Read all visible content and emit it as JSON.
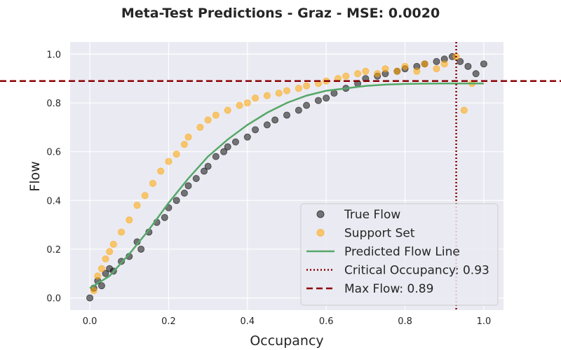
{
  "chart_data": {
    "type": "scatter",
    "title": "Meta-Test Predictions - Graz - MSE: 0.0020",
    "xlabel": "Occupancy",
    "ylabel": "Flow",
    "xlim": [
      -0.05,
      1.05
    ],
    "ylim": [
      -0.05,
      1.05
    ],
    "x_ticks": [
      "0.0",
      "0.2",
      "0.4",
      "0.6",
      "0.8",
      "1.0"
    ],
    "y_ticks": [
      "0.0",
      "0.2",
      "0.4",
      "0.6",
      "0.8",
      "1.0"
    ],
    "grid": true,
    "legend_position": "lower-right",
    "background_color": "#eaeaf2",
    "series": [
      {
        "name": "True Flow",
        "kind": "scatter",
        "color": "#222222",
        "points": [
          [
            0.0,
            0.0
          ],
          [
            0.01,
            0.04
          ],
          [
            0.02,
            0.07
          ],
          [
            0.03,
            0.05
          ],
          [
            0.04,
            0.1
          ],
          [
            0.05,
            0.12
          ],
          [
            0.06,
            0.11
          ],
          [
            0.08,
            0.15
          ],
          [
            0.1,
            0.17
          ],
          [
            0.12,
            0.23
          ],
          [
            0.13,
            0.2
          ],
          [
            0.15,
            0.27
          ],
          [
            0.17,
            0.31
          ],
          [
            0.19,
            0.33
          ],
          [
            0.2,
            0.37
          ],
          [
            0.22,
            0.4
          ],
          [
            0.24,
            0.43
          ],
          [
            0.25,
            0.46
          ],
          [
            0.27,
            0.49
          ],
          [
            0.29,
            0.52
          ],
          [
            0.3,
            0.54
          ],
          [
            0.32,
            0.58
          ],
          [
            0.34,
            0.6
          ],
          [
            0.35,
            0.62
          ],
          [
            0.37,
            0.64
          ],
          [
            0.4,
            0.66
          ],
          [
            0.42,
            0.69
          ],
          [
            0.45,
            0.71
          ],
          [
            0.47,
            0.73
          ],
          [
            0.5,
            0.75
          ],
          [
            0.53,
            0.77
          ],
          [
            0.55,
            0.79
          ],
          [
            0.58,
            0.81
          ],
          [
            0.6,
            0.82
          ],
          [
            0.62,
            0.84
          ],
          [
            0.65,
            0.86
          ],
          [
            0.68,
            0.88
          ],
          [
            0.7,
            0.9
          ],
          [
            0.73,
            0.91
          ],
          [
            0.75,
            0.92
          ],
          [
            0.78,
            0.93
          ],
          [
            0.8,
            0.94
          ],
          [
            0.83,
            0.95
          ],
          [
            0.85,
            0.96
          ],
          [
            0.88,
            0.97
          ],
          [
            0.9,
            0.98
          ],
          [
            0.92,
            0.99
          ],
          [
            0.94,
            0.97
          ],
          [
            0.96,
            0.95
          ],
          [
            0.98,
            0.92
          ],
          [
            1.0,
            0.96
          ]
        ]
      },
      {
        "name": "Support Set",
        "kind": "scatter",
        "color": "#ffa500",
        "points": [
          [
            0.01,
            0.03
          ],
          [
            0.02,
            0.09
          ],
          [
            0.03,
            0.12
          ],
          [
            0.04,
            0.16
          ],
          [
            0.05,
            0.19
          ],
          [
            0.06,
            0.22
          ],
          [
            0.08,
            0.27
          ],
          [
            0.1,
            0.32
          ],
          [
            0.12,
            0.38
          ],
          [
            0.14,
            0.42
          ],
          [
            0.16,
            0.47
          ],
          [
            0.18,
            0.52
          ],
          [
            0.2,
            0.56
          ],
          [
            0.22,
            0.59
          ],
          [
            0.24,
            0.63
          ],
          [
            0.25,
            0.66
          ],
          [
            0.28,
            0.7
          ],
          [
            0.3,
            0.73
          ],
          [
            0.32,
            0.75
          ],
          [
            0.35,
            0.77
          ],
          [
            0.38,
            0.79
          ],
          [
            0.4,
            0.8
          ],
          [
            0.42,
            0.82
          ],
          [
            0.45,
            0.83
          ],
          [
            0.48,
            0.84
          ],
          [
            0.5,
            0.85
          ],
          [
            0.53,
            0.86
          ],
          [
            0.55,
            0.87
          ],
          [
            0.58,
            0.88
          ],
          [
            0.6,
            0.89
          ],
          [
            0.63,
            0.9
          ],
          [
            0.65,
            0.91
          ],
          [
            0.68,
            0.92
          ],
          [
            0.7,
            0.93
          ],
          [
            0.73,
            0.92
          ],
          [
            0.75,
            0.94
          ],
          [
            0.78,
            0.93
          ],
          [
            0.8,
            0.95
          ],
          [
            0.83,
            0.93
          ],
          [
            0.85,
            0.96
          ],
          [
            0.88,
            0.94
          ],
          [
            0.9,
            0.96
          ],
          [
            0.93,
            0.99
          ],
          [
            0.95,
            0.77
          ],
          [
            0.97,
            0.88
          ]
        ]
      },
      {
        "name": "Predicted Flow Line",
        "kind": "line",
        "color": "#55a868",
        "points": [
          [
            0.0,
            0.04
          ],
          [
            0.05,
            0.09
          ],
          [
            0.1,
            0.18
          ],
          [
            0.15,
            0.28
          ],
          [
            0.2,
            0.39
          ],
          [
            0.25,
            0.49
          ],
          [
            0.3,
            0.58
          ],
          [
            0.35,
            0.65
          ],
          [
            0.4,
            0.71
          ],
          [
            0.45,
            0.76
          ],
          [
            0.5,
            0.8
          ],
          [
            0.55,
            0.83
          ],
          [
            0.6,
            0.85
          ],
          [
            0.65,
            0.86
          ],
          [
            0.7,
            0.87
          ],
          [
            0.75,
            0.875
          ],
          [
            0.8,
            0.878
          ],
          [
            0.85,
            0.879
          ],
          [
            0.9,
            0.88
          ],
          [
            0.95,
            0.88
          ],
          [
            1.0,
            0.88
          ]
        ]
      }
    ],
    "reference_lines": [
      {
        "name": "Critical Occupancy: 0.93",
        "orientation": "vertical",
        "value": 0.93,
        "color": "#8b0000",
        "style": "dotted"
      },
      {
        "name": "Max Flow: 0.89",
        "orientation": "horizontal",
        "value": 0.89,
        "color": "#8b0000",
        "style": "dashed"
      }
    ]
  }
}
